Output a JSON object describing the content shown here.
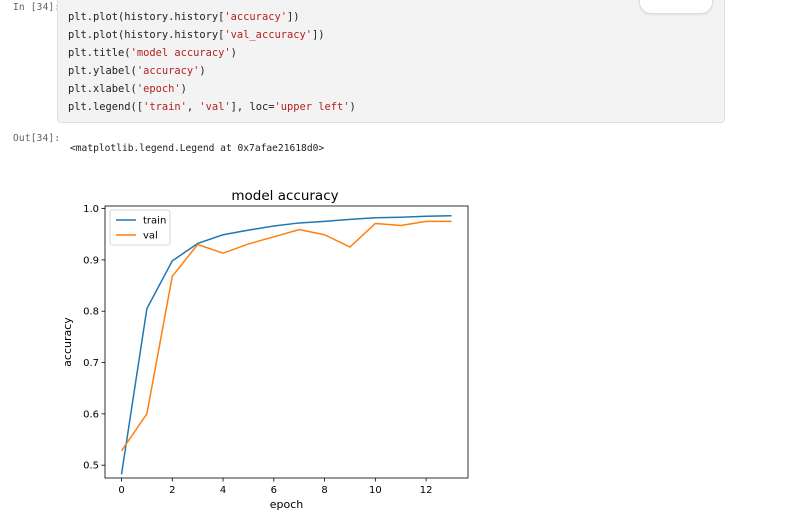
{
  "cell_input": {
    "prompt": "In [34]:",
    "code_lines": [
      [
        "plt.plot(history.history[",
        "'accuracy'",
        "])"
      ],
      [
        "plt.plot(history.history[",
        "'val_accuracy'",
        "])"
      ],
      [
        "plt.title(",
        "'model accuracy'",
        ")"
      ],
      [
        "plt.ylabel(",
        "'accuracy'",
        ")"
      ],
      [
        "plt.xlabel(",
        "'epoch'",
        ")"
      ],
      [
        "plt.legend([",
        "'train'",
        ", ",
        "'val'",
        "], loc=",
        "'upper left'",
        ")"
      ]
    ]
  },
  "toolbar": {
    "icons": [
      "copy-icon",
      "close-icon"
    ]
  },
  "cell_output": {
    "prompt": "Out[34]:",
    "text": "<matplotlib.legend.Legend at 0x7afae21618d0>"
  },
  "chart_data": {
    "type": "line",
    "title": "model accuracy",
    "xlabel": "epoch",
    "ylabel": "accuracy",
    "xlim": [
      -0.65,
      13.65
    ],
    "ylim": [
      0.475,
      1.005
    ],
    "x_ticks": [
      0,
      2,
      4,
      6,
      8,
      10,
      12
    ],
    "y_ticks": [
      0.5,
      0.6,
      0.7,
      0.8,
      0.9,
      1.0
    ],
    "y_tick_labels": [
      "0.5",
      "0.6",
      "0.7",
      "0.8",
      "0.9",
      "1.0"
    ],
    "legend_position": "upper left",
    "grid": false,
    "x": [
      0,
      1,
      2,
      3,
      4,
      5,
      6,
      7,
      8,
      9,
      10,
      11,
      12,
      13
    ],
    "series": [
      {
        "name": "train",
        "color": "#1f77b4",
        "values": [
          0.482,
          0.805,
          0.898,
          0.932,
          0.949,
          0.958,
          0.966,
          0.972,
          0.975,
          0.979,
          0.982,
          0.983,
          0.985,
          0.986
        ]
      },
      {
        "name": "val",
        "color": "#ff7f0e",
        "values": [
          0.528,
          0.6,
          0.868,
          0.93,
          0.913,
          0.931,
          0.945,
          0.959,
          0.949,
          0.925,
          0.971,
          0.967,
          0.975,
          0.975
        ]
      }
    ]
  }
}
